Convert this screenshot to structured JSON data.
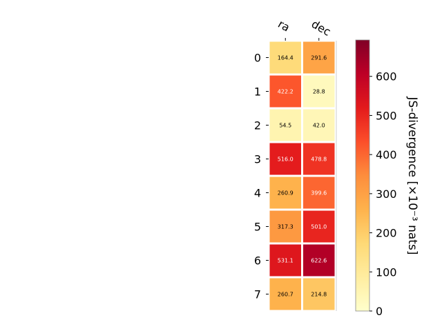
{
  "chart_data": {
    "type": "heatmap",
    "columns": [
      "ra",
      "dec"
    ],
    "rows": [
      "0",
      "1",
      "2",
      "3",
      "4",
      "5",
      "6",
      "7"
    ],
    "values": [
      [
        164.4,
        291.6
      ],
      [
        422.2,
        28.8
      ],
      [
        54.5,
        42.0
      ],
      [
        516.0,
        478.8
      ],
      [
        260.9,
        399.6
      ],
      [
        317.3,
        501.0
      ],
      [
        531.1,
        622.6
      ],
      [
        260.7,
        214.8
      ]
    ],
    "value_labels": [
      [
        "164.4",
        "291.6"
      ],
      [
        "422.2",
        "28.8"
      ],
      [
        "54.5",
        "42.0"
      ],
      [
        "516.0",
        "478.8"
      ],
      [
        "260.9",
        "399.6"
      ],
      [
        "317.3",
        "501.0"
      ],
      [
        "531.1",
        "622.6"
      ],
      [
        "260.7",
        "214.8"
      ]
    ],
    "colorbar": {
      "label": "JS-divergence [×10⁻³ nats]",
      "min": 0,
      "max": 693,
      "ticks": [
        0,
        100,
        200,
        300,
        400,
        500,
        600
      ],
      "colormap": "YlOrRd"
    },
    "colors": {
      "cmap_stops": [
        "#ffffcc",
        "#ffeda0",
        "#fed976",
        "#feb24c",
        "#fd8d3c",
        "#fc4e2a",
        "#e31a1c",
        "#bd0026",
        "#800026"
      ]
    }
  }
}
